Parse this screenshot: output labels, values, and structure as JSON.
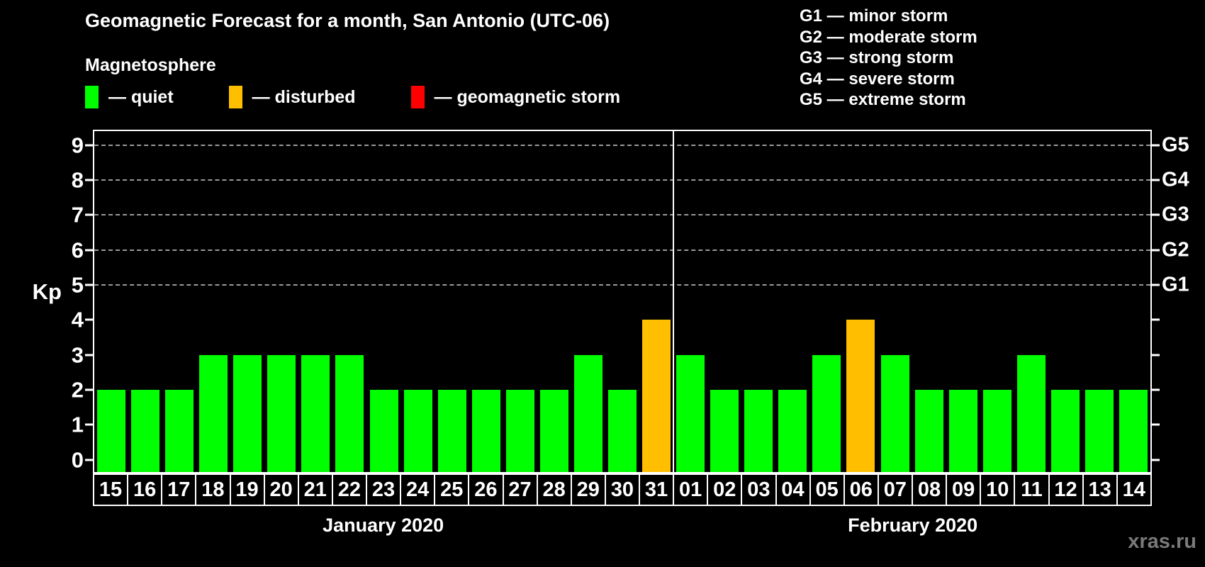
{
  "title": "Geomagnetic Forecast for a month, San Antonio (UTC-06)",
  "legend": {
    "heading": "Magnetosphere",
    "items": [
      {
        "name": "quiet",
        "label": "— quiet",
        "color": "#00ff00"
      },
      {
        "name": "disturbed",
        "label": "— disturbed",
        "color": "#ffbf00"
      },
      {
        "name": "geomagnetic-storm",
        "label": "— geomagnetic storm",
        "color": "#ff0000"
      }
    ]
  },
  "g_scale_legend": [
    "G1 — minor storm",
    "G2 — moderate storm",
    "G3 — strong storm",
    "G4 — severe storm",
    "G5 — extreme storm"
  ],
  "chart_data": {
    "type": "bar",
    "title": "Geomagnetic Forecast for a month, San Antonio (UTC-06)",
    "ylabel": "Kp",
    "ylim": [
      -0.35,
      9.4
    ],
    "yticks": [
      0,
      1,
      2,
      3,
      4,
      5,
      6,
      7,
      8,
      9
    ],
    "gridlines_at": [
      5,
      6,
      7,
      8,
      9
    ],
    "grid": "dashed horizontal lines at Kp 5-9 only",
    "legend_position": "top-left (status colors) and top-right (G-scale)",
    "right_axis_labels": [
      {
        "kp": 5,
        "label": "G1"
      },
      {
        "kp": 6,
        "label": "G2"
      },
      {
        "kp": 7,
        "label": "G3"
      },
      {
        "kp": 8,
        "label": "G4"
      },
      {
        "kp": 9,
        "label": "G5"
      }
    ],
    "months": [
      {
        "label": "January 2020",
        "days": 17
      },
      {
        "label": "February 2020",
        "days": 14
      }
    ],
    "categories": [
      "15",
      "16",
      "17",
      "18",
      "19",
      "20",
      "21",
      "22",
      "23",
      "24",
      "25",
      "26",
      "27",
      "28",
      "29",
      "30",
      "31",
      "01",
      "02",
      "03",
      "04",
      "05",
      "06",
      "07",
      "08",
      "09",
      "10",
      "11",
      "12",
      "13",
      "14"
    ],
    "values": [
      2,
      2,
      2,
      3,
      3,
      3,
      3,
      3,
      2,
      2,
      2,
      2,
      2,
      2,
      3,
      2,
      4,
      3,
      2,
      2,
      2,
      3,
      4,
      3,
      2,
      2,
      2,
      3,
      2,
      2,
      2
    ],
    "statuses": [
      "quiet",
      "quiet",
      "quiet",
      "quiet",
      "quiet",
      "quiet",
      "quiet",
      "quiet",
      "quiet",
      "quiet",
      "quiet",
      "quiet",
      "quiet",
      "quiet",
      "quiet",
      "quiet",
      "disturbed",
      "quiet",
      "quiet",
      "quiet",
      "quiet",
      "quiet",
      "disturbed",
      "quiet",
      "quiet",
      "quiet",
      "quiet",
      "quiet",
      "quiet",
      "quiet",
      "quiet"
    ],
    "status_colors": {
      "quiet": "#00ff00",
      "disturbed": "#ffbf00",
      "storm": "#ff0000"
    }
  },
  "watermark": "xras.ru",
  "colors": {
    "background": "#000000",
    "text": "#ffffff",
    "axis": "#ffffff",
    "gridline": "#9a9a9a",
    "watermark_text": "#7a7a7a"
  }
}
